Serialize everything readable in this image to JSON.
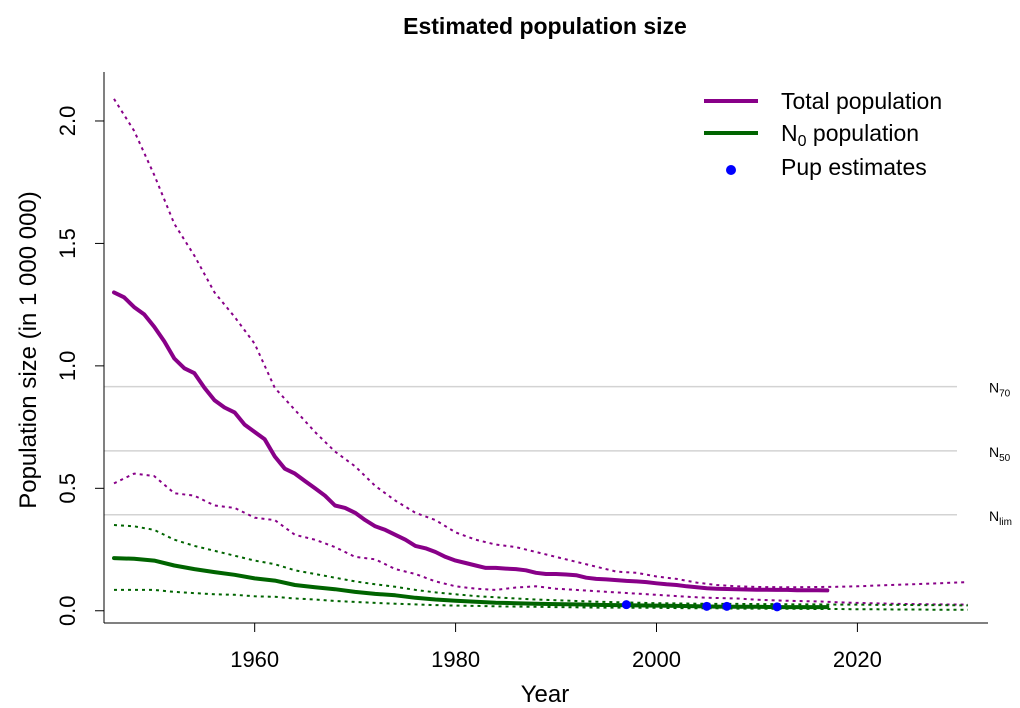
{
  "chart_data": {
    "type": "line",
    "title": "Estimated population size",
    "xlabel": "Year",
    "ylabel": "Population size (in 1 000 000)",
    "xlim": [
      1945,
      2033
    ],
    "ylim": [
      -0.05,
      2.2
    ],
    "x_ticks": [
      1960,
      1980,
      2000,
      2020
    ],
    "y_ticks": [
      0.0,
      0.5,
      1.0,
      1.5,
      2.0
    ],
    "x_tick_labels": [
      "1960",
      "1980",
      "2000",
      "2020"
    ],
    "y_tick_labels": [
      "0.0",
      "0.5",
      "1.0",
      "1.5",
      "2.0"
    ],
    "grid": false,
    "reference_lines": [
      {
        "base": "N",
        "sub": "70",
        "y": 0.915
      },
      {
        "base": "N",
        "sub": "50",
        "y": 0.653
      },
      {
        "base": "N",
        "sub": "lim",
        "y": 0.392
      }
    ],
    "legend": {
      "position": "top-right",
      "entries": [
        {
          "text": "Total population",
          "base": "Total population",
          "sub": "",
          "suffix": "",
          "kind": "line",
          "color": "#880088"
        },
        {
          "text": "N0 population",
          "base": "N",
          "sub": "0",
          "suffix": " population",
          "kind": "line",
          "color": "#006400"
        },
        {
          "text": "Pup estimates",
          "base": "Pup estimates",
          "sub": "",
          "suffix": "",
          "kind": "point",
          "color": "#0000ff"
        }
      ]
    },
    "series": [
      {
        "name": "Total population",
        "color": "#880088",
        "style": "solid",
        "width": 4,
        "x": [
          1946,
          1947,
          1948,
          1949,
          1950,
          1951,
          1952,
          1953,
          1954,
          1955,
          1956,
          1957,
          1958,
          1959,
          1960,
          1961,
          1962,
          1963,
          1964,
          1965,
          1966,
          1967,
          1968,
          1969,
          1970,
          1971,
          1972,
          1973,
          1974,
          1975,
          1976,
          1977,
          1978,
          1979,
          1980,
          1981,
          1982,
          1983,
          1984,
          1985,
          1986,
          1987,
          1988,
          1989,
          1990,
          1991,
          1992,
          1993,
          1994,
          1995,
          1996,
          1997,
          1998,
          1999,
          2000,
          2001,
          2002,
          2003,
          2004,
          2005,
          2006,
          2007,
          2008,
          2009,
          2010,
          2011,
          2012,
          2013,
          2014,
          2015,
          2016,
          2017
        ],
        "y": [
          1.3,
          1.28,
          1.24,
          1.21,
          1.16,
          1.1,
          1.03,
          0.99,
          0.97,
          0.91,
          0.86,
          0.83,
          0.81,
          0.76,
          0.73,
          0.7,
          0.63,
          0.58,
          0.56,
          0.53,
          0.5,
          0.47,
          0.43,
          0.42,
          0.4,
          0.37,
          0.345,
          0.33,
          0.31,
          0.29,
          0.265,
          0.255,
          0.24,
          0.22,
          0.205,
          0.195,
          0.185,
          0.175,
          0.175,
          0.172,
          0.17,
          0.165,
          0.155,
          0.15,
          0.15,
          0.148,
          0.145,
          0.135,
          0.13,
          0.128,
          0.125,
          0.122,
          0.12,
          0.117,
          0.112,
          0.108,
          0.105,
          0.1,
          0.096,
          0.092,
          0.09,
          0.089,
          0.088,
          0.087,
          0.086,
          0.086,
          0.085,
          0.085,
          0.084,
          0.084,
          0.084,
          0.083
        ]
      },
      {
        "name": "Total population upper bound",
        "color": "#880088",
        "style": "dotted",
        "width": 2,
        "x": [
          1946,
          1948,
          1950,
          1952,
          1954,
          1956,
          1958,
          1960,
          1962,
          1964,
          1966,
          1968,
          1970,
          1972,
          1974,
          1976,
          1978,
          1980,
          1982,
          1984,
          1986,
          1988,
          1990,
          1992,
          1994,
          1996,
          1998,
          2000,
          2002,
          2004,
          2006,
          2008,
          2010,
          2012,
          2014,
          2016,
          2018,
          2020,
          2022,
          2024,
          2026,
          2028,
          2031
        ],
        "y": [
          2.09,
          1.96,
          1.78,
          1.58,
          1.45,
          1.3,
          1.2,
          1.09,
          0.91,
          0.82,
          0.73,
          0.65,
          0.59,
          0.51,
          0.45,
          0.4,
          0.37,
          0.32,
          0.29,
          0.27,
          0.26,
          0.24,
          0.22,
          0.2,
          0.18,
          0.16,
          0.155,
          0.14,
          0.13,
          0.115,
          0.105,
          0.1,
          0.097,
          0.096,
          0.096,
          0.097,
          0.098,
          0.1,
          0.103,
          0.106,
          0.109,
          0.112,
          0.117
        ]
      },
      {
        "name": "Total population lower bound",
        "color": "#880088",
        "style": "dotted",
        "width": 2,
        "x": [
          1946,
          1948,
          1950,
          1952,
          1954,
          1956,
          1958,
          1960,
          1962,
          1964,
          1966,
          1968,
          1970,
          1972,
          1974,
          1976,
          1978,
          1980,
          1982,
          1984,
          1986,
          1988,
          1990,
          1992,
          1994,
          1996,
          1998,
          2000,
          2002,
          2004,
          2006,
          2008,
          2010,
          2012,
          2014,
          2016,
          2018,
          2020,
          2022,
          2024,
          2026,
          2028,
          2031
        ],
        "y": [
          0.52,
          0.56,
          0.55,
          0.48,
          0.47,
          0.43,
          0.42,
          0.38,
          0.37,
          0.31,
          0.29,
          0.26,
          0.22,
          0.21,
          0.17,
          0.15,
          0.12,
          0.1,
          0.09,
          0.085,
          0.095,
          0.1,
          0.09,
          0.085,
          0.08,
          0.075,
          0.07,
          0.065,
          0.06,
          0.055,
          0.052,
          0.05,
          0.045,
          0.042,
          0.04,
          0.038,
          0.035,
          0.032,
          0.03,
          0.028,
          0.027,
          0.026,
          0.025
        ]
      },
      {
        "name": "N0 population",
        "color": "#006400",
        "style": "solid",
        "width": 4,
        "x": [
          1946,
          1948,
          1950,
          1952,
          1954,
          1956,
          1958,
          1960,
          1962,
          1964,
          1966,
          1968,
          1970,
          1972,
          1974,
          1976,
          1978,
          1980,
          1982,
          1984,
          1986,
          1988,
          1990,
          1992,
          1994,
          1996,
          1998,
          2000,
          2002,
          2004,
          2006,
          2008,
          2010,
          2012,
          2014,
          2017
        ],
        "y": [
          0.215,
          0.212,
          0.205,
          0.185,
          0.17,
          0.158,
          0.147,
          0.132,
          0.123,
          0.105,
          0.096,
          0.088,
          0.077,
          0.069,
          0.063,
          0.053,
          0.046,
          0.041,
          0.037,
          0.033,
          0.031,
          0.029,
          0.027,
          0.026,
          0.024,
          0.023,
          0.022,
          0.021,
          0.02,
          0.018,
          0.017,
          0.016,
          0.016,
          0.015,
          0.015,
          0.015
        ]
      },
      {
        "name": "N0 population upper bound",
        "color": "#006400",
        "style": "dotted",
        "width": 2,
        "x": [
          1946,
          1948,
          1950,
          1952,
          1954,
          1956,
          1958,
          1960,
          1962,
          1964,
          1966,
          1968,
          1970,
          1972,
          1974,
          1976,
          1978,
          1980,
          1982,
          1984,
          1986,
          1988,
          1990,
          1992,
          1994,
          1996,
          1998,
          2000,
          2002,
          2004,
          2006,
          2008,
          2010,
          2012,
          2014,
          2016,
          2018,
          2020,
          2022,
          2024,
          2026,
          2028,
          2031
        ],
        "y": [
          0.35,
          0.345,
          0.33,
          0.29,
          0.265,
          0.245,
          0.225,
          0.205,
          0.19,
          0.165,
          0.15,
          0.135,
          0.12,
          0.108,
          0.098,
          0.085,
          0.075,
          0.067,
          0.06,
          0.055,
          0.05,
          0.046,
          0.043,
          0.04,
          0.037,
          0.035,
          0.033,
          0.031,
          0.03,
          0.029,
          0.028,
          0.028,
          0.027,
          0.027,
          0.026,
          0.026,
          0.025,
          0.025,
          0.024,
          0.024,
          0.023,
          0.023,
          0.022
        ]
      },
      {
        "name": "N0 population lower bound",
        "color": "#006400",
        "style": "dotted",
        "width": 2,
        "x": [
          1946,
          1948,
          1950,
          1952,
          1954,
          1956,
          1958,
          1960,
          1962,
          1964,
          1966,
          1968,
          1970,
          1972,
          1974,
          1976,
          1978,
          1980,
          1982,
          1984,
          1986,
          1988,
          1990,
          1992,
          1994,
          1996,
          1998,
          2000,
          2002,
          2004,
          2006,
          2008,
          2010,
          2012,
          2014,
          2016,
          2018,
          2020,
          2022,
          2024,
          2026,
          2028,
          2031
        ],
        "y": [
          0.085,
          0.085,
          0.085,
          0.077,
          0.072,
          0.067,
          0.065,
          0.059,
          0.057,
          0.05,
          0.046,
          0.04,
          0.036,
          0.032,
          0.029,
          0.026,
          0.023,
          0.021,
          0.02,
          0.018,
          0.017,
          0.016,
          0.015,
          0.014,
          0.013,
          0.013,
          0.012,
          0.012,
          0.011,
          0.01,
          0.01,
          0.009,
          0.009,
          0.008,
          0.008,
          0.007,
          0.007,
          0.006,
          0.006,
          0.005,
          0.005,
          0.004,
          0.004
        ]
      }
    ],
    "points": {
      "name": "Pup estimates",
      "color": "#0000ff",
      "x": [
        1997,
        2005,
        2007,
        2012
      ],
      "y": [
        0.025,
        0.018,
        0.018,
        0.016
      ]
    }
  }
}
